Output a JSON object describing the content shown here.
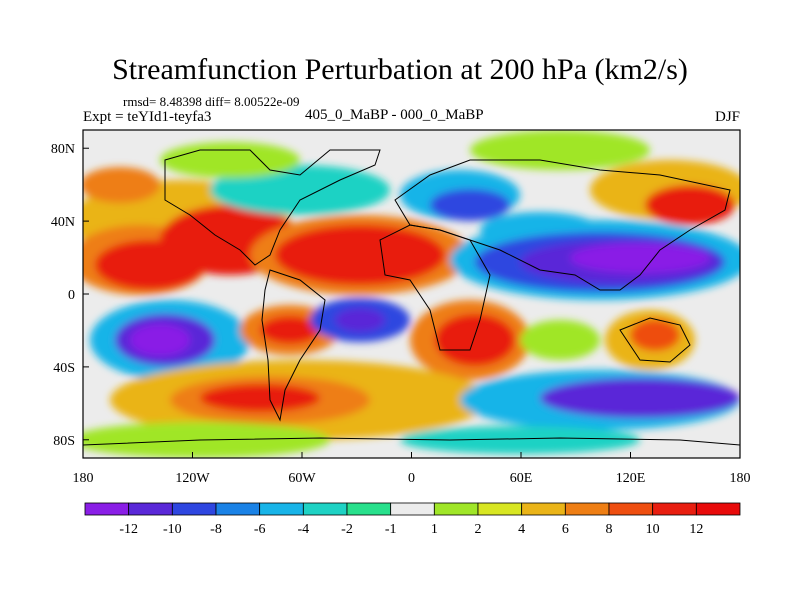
{
  "title": "Streamfunction Perturbation at 200 hPa (km2/s)",
  "stats": "rmsd= 8.48398 diff= 8.00522e-09",
  "left_label": "Expt = teYId1-teyfa3",
  "center_label": "405_0_MaBP - 000_0_MaBP",
  "right_label": "DJF",
  "x_ticks": [
    "180",
    "120W",
    "60W",
    "0",
    "60E",
    "120E",
    "180"
  ],
  "y_ticks": [
    "80N",
    "40N",
    "0",
    "40S",
    "80S"
  ],
  "colorbar": {
    "labels": [
      "-12",
      "-10",
      "-8",
      "-6",
      "-4",
      "-2",
      "-1",
      "1",
      "2",
      "4",
      "6",
      "8",
      "10",
      "12"
    ],
    "colors": [
      "#8a1ee6",
      "#5a28d8",
      "#2e46e0",
      "#1a82e6",
      "#18b4e8",
      "#1ed2c4",
      "#28e08c",
      "#ececec",
      "#a0e628",
      "#d8e622",
      "#eab418",
      "#ee7e14",
      "#ee4e10",
      "#e81e10",
      "#e80a0a"
    ]
  }
}
